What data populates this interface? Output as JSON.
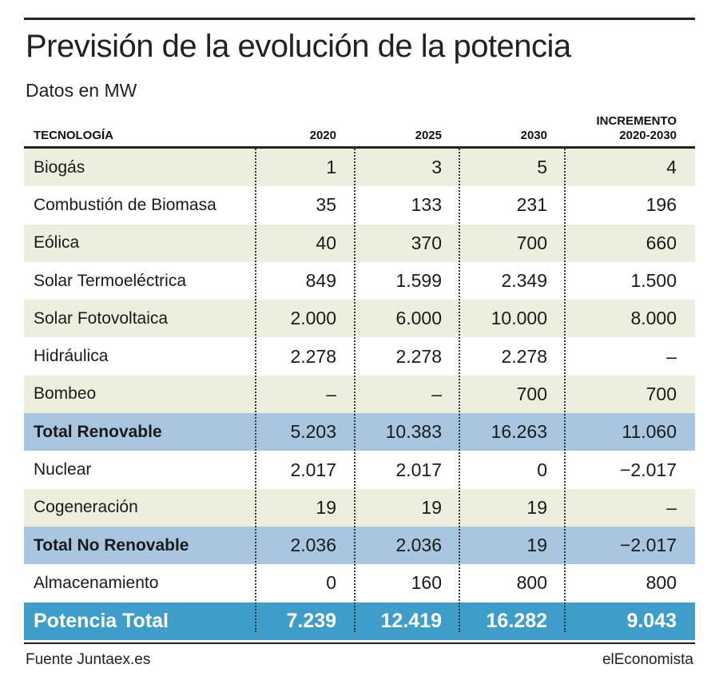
{
  "title": "Previsión de la evolución de la potencia",
  "subtitle": "Datos en MW",
  "headers": {
    "technology": "TECNOLOGÍA",
    "y2020": "2020",
    "y2025": "2025",
    "y2030": "2030",
    "increment_line1": "INCREMENTO",
    "increment_line2": "2020-2030"
  },
  "rows": [
    {
      "name": "Biogás",
      "v2020": "1",
      "v2025": "3",
      "v2030": "5",
      "inc": "4",
      "style": "odd"
    },
    {
      "name": "Combustión de Biomasa",
      "v2020": "35",
      "v2025": "133",
      "v2030": "231",
      "inc": "196",
      "style": "even"
    },
    {
      "name": "Eólica",
      "v2020": "40",
      "v2025": "370",
      "v2030": "700",
      "inc": "660",
      "style": "odd"
    },
    {
      "name": "Solar Termoeléctrica",
      "v2020": "849",
      "v2025": "1.599",
      "v2030": "2.349",
      "inc": "1.500",
      "style": "even"
    },
    {
      "name": "Solar Fotovoltaica",
      "v2020": "2.000",
      "v2025": "6.000",
      "v2030": "10.000",
      "inc": "8.000",
      "style": "odd"
    },
    {
      "name": "Hidráulica",
      "v2020": "2.278",
      "v2025": "2.278",
      "v2030": "2.278",
      "inc": "–",
      "style": "even"
    },
    {
      "name": "Bombeo",
      "v2020": "–",
      "v2025": "–",
      "v2030": "700",
      "inc": "700",
      "style": "odd"
    },
    {
      "name": "Total Renovable",
      "v2020": "5.203",
      "v2025": "10.383",
      "v2030": "16.263",
      "inc": "11.060",
      "style": "total"
    },
    {
      "name": "Nuclear",
      "v2020": "2.017",
      "v2025": "2.017",
      "v2030": "0",
      "inc": "−2.017",
      "style": "even"
    },
    {
      "name": "Cogeneración",
      "v2020": "19",
      "v2025": "19",
      "v2030": "19",
      "inc": "–",
      "style": "odd"
    },
    {
      "name": "Total No Renovable",
      "v2020": "2.036",
      "v2025": "2.036",
      "v2030": "19",
      "inc": "−2.017",
      "style": "total"
    },
    {
      "name": "Almacenamiento",
      "v2020": "0",
      "v2025": "160",
      "v2030": "800",
      "inc": "800",
      "style": "even"
    },
    {
      "name": "Potencia Total",
      "v2020": "7.239",
      "v2025": "12.419",
      "v2030": "16.282",
      "inc": "9.043",
      "style": "grand"
    }
  ],
  "colors": {
    "odd_row": "#eeeedf",
    "total_row": "#a8c6e0",
    "grand_total_row": "#3f9ec9"
  },
  "footer": {
    "source": "Fuente Juntaex.es",
    "brand": "elEconomista"
  }
}
